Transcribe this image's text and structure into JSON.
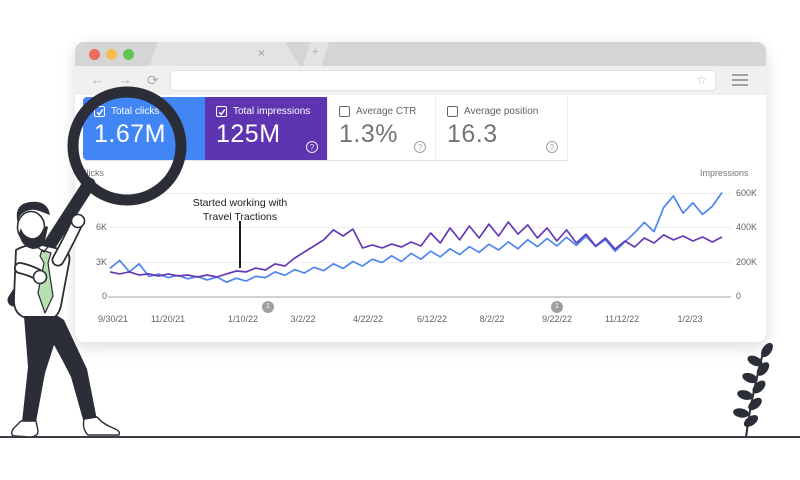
{
  "browser": {
    "tab_title": "",
    "close_tab_icon": "×",
    "new_tab_icon": "+",
    "back_icon": "←",
    "forward_icon": "→",
    "reload_icon": "⟳",
    "star_icon": "☆",
    "url_value": "",
    "traffic_light_colors": [
      "#ed6a5e",
      "#f4bf4f",
      "#61c554"
    ]
  },
  "metrics": [
    {
      "label": "Total clicks",
      "value": "1.67M",
      "bg": "#4285f4",
      "checked": true,
      "help": ""
    },
    {
      "label": "Total impressions",
      "value": "125M",
      "bg": "#5e35b1",
      "checked": true,
      "help": "?"
    },
    {
      "label": "Average CTR",
      "value": "1.3%",
      "bg": "#ffffff",
      "checked": false,
      "help": "?"
    },
    {
      "label": "Average position",
      "value": "16.3",
      "bg": "#ffffff",
      "checked": false,
      "help": "?"
    }
  ],
  "chart_data": {
    "type": "line",
    "title": "",
    "left_axis": {
      "label": "Clicks",
      "ticks": [
        "6K",
        "3K",
        "0"
      ],
      "plot_max": 9000
    },
    "right_axis": {
      "label": "Impressions",
      "ticks": [
        "600K",
        "400K",
        "200K",
        "0"
      ],
      "plot_max": 600000
    },
    "x_ticks": [
      "9/30/21",
      "11/20/21",
      "1/10/22",
      "3/2/22",
      "4/22/22",
      "6/12/22",
      "8/2/22",
      "9/22/22",
      "11/12/22",
      "1/2/23"
    ],
    "annotation": {
      "line1": "Started working with",
      "line2": "Travel Tractions"
    },
    "markers": [
      "1",
      "1"
    ],
    "grid": true,
    "legend_position": "none",
    "series": [
      {
        "name": "Clicks",
        "axis": "left",
        "color": "#4e85f1",
        "values": [
          2400,
          3100,
          2100,
          2800,
          1700,
          1900,
          1600,
          1800,
          1500,
          1700,
          1400,
          1650,
          1200,
          1550,
          1300,
          1700,
          1600,
          2100,
          1800,
          2300,
          2000,
          2500,
          2200,
          2800,
          2400,
          3000,
          2600,
          3200,
          2900,
          3500,
          3000,
          3700,
          3200,
          3900,
          3400,
          4100,
          3600,
          4300,
          3800,
          4500,
          4000,
          4700,
          4100,
          4900,
          4300,
          5000,
          4350,
          5100,
          4400,
          5200,
          4300,
          4900,
          3900,
          4700,
          5500,
          6400,
          5600,
          7700,
          8700,
          7200,
          8100,
          7100,
          7800,
          9000
        ]
      },
      {
        "name": "Impressions",
        "axis": "right",
        "color": "#6639b5",
        "values": [
          140000,
          128000,
          140000,
          122000,
          128000,
          116000,
          128000,
          116000,
          122000,
          110000,
          122000,
          110000,
          128000,
          145000,
          140000,
          162000,
          151000,
          186000,
          174000,
          220000,
          255000,
          290000,
          325000,
          383000,
          348000,
          388000,
          278000,
          296000,
          278000,
          301000,
          284000,
          313000,
          290000,
          365000,
          307000,
          394000,
          325000,
          406000,
          336000,
          417000,
          348000,
          429000,
          359000,
          412000,
          336000,
          394000,
          319000,
          383000,
          307000,
          359000,
          290000,
          336000,
          272000,
          319000,
          284000,
          336000,
          307000,
          354000,
          325000,
          348000,
          319000,
          342000,
          313000,
          342000
        ]
      }
    ]
  },
  "illustration": {
    "man": "man-with-magnifying-glass",
    "plant": "leaf-branch",
    "dark_color": "#2b2e36",
    "tie_color": "#b7dfb2"
  }
}
